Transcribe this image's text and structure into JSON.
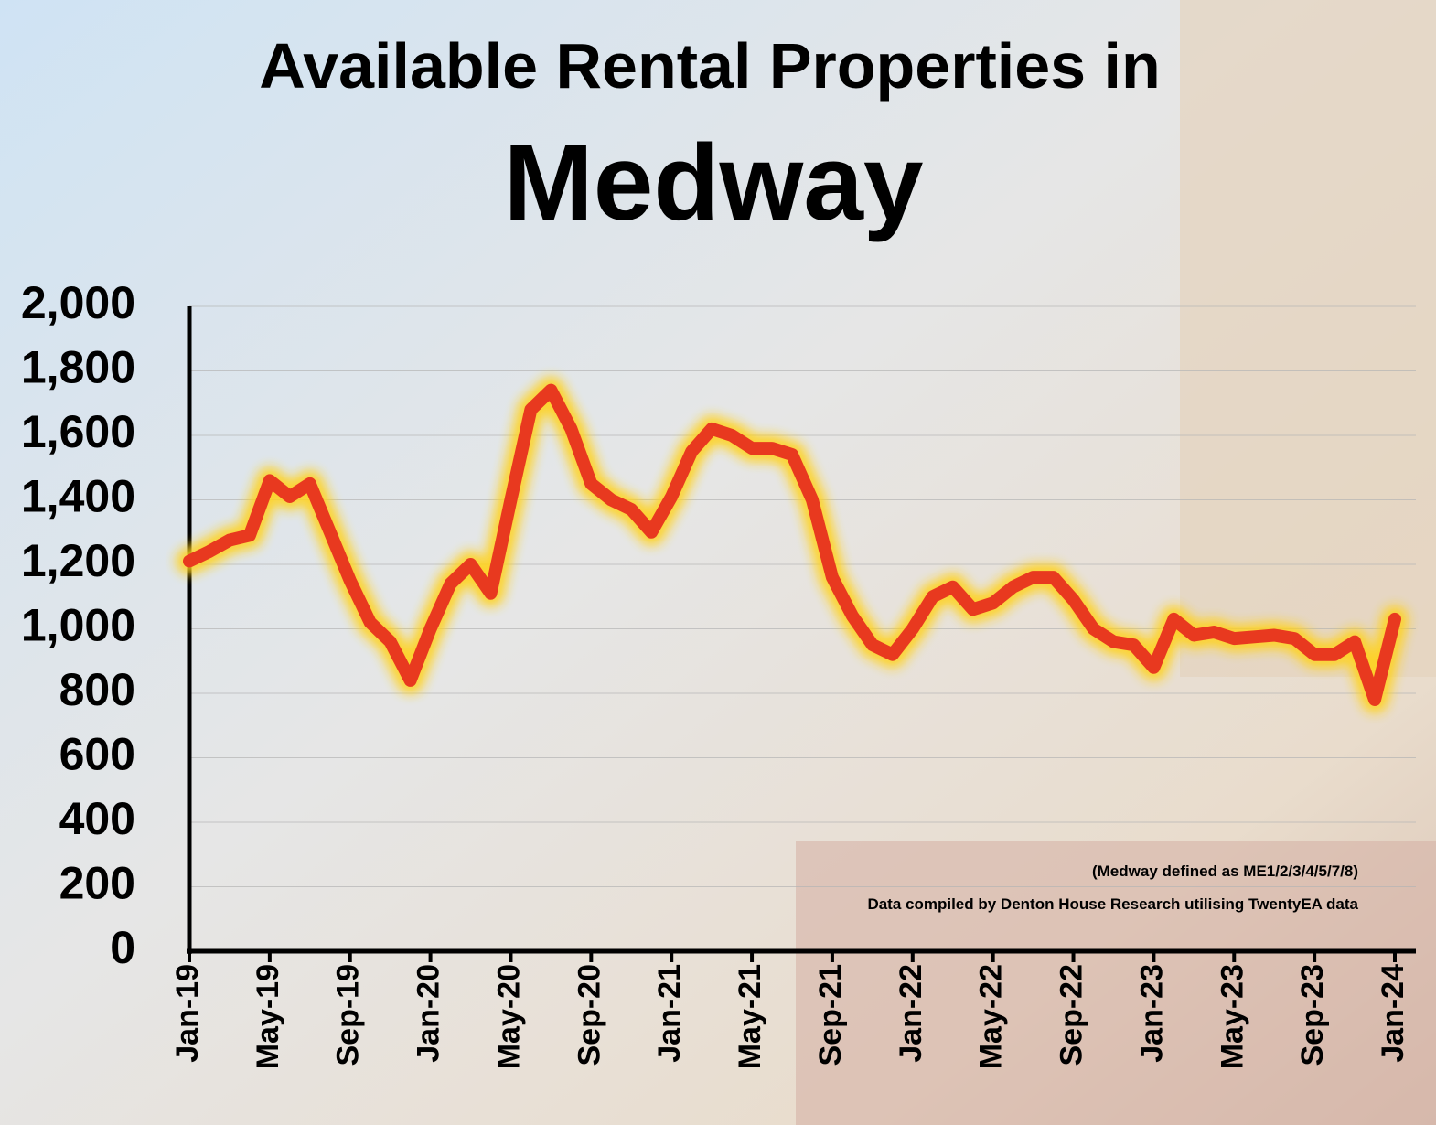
{
  "chart_data": {
    "type": "line",
    "title": "Available Rental Properties in",
    "subtitle": "Medway",
    "annotations": [
      "(Medway defined as ME1/2/3/4/5/7/8)",
      "Data compiled by Denton House Research utilising TwentyEA data"
    ],
    "categories": [
      "Jan-19",
      null,
      null,
      null,
      "May-19",
      null,
      null,
      null,
      "Sep-19",
      null,
      null,
      null,
      "Jan-20",
      null,
      null,
      null,
      "May-20",
      null,
      null,
      null,
      "Sep-20",
      null,
      null,
      null,
      "Jan-21",
      null,
      null,
      null,
      "May-21",
      null,
      null,
      null,
      "Sep-21",
      null,
      null,
      null,
      "Jan-22",
      null,
      null,
      null,
      "May-22",
      null,
      null,
      null,
      "Sep-22",
      null,
      null,
      null,
      "Jan-23",
      null,
      null,
      null,
      "May-23",
      null,
      null,
      null,
      "Sep-23",
      null,
      null,
      null,
      "Jan-24"
    ],
    "series": [
      {
        "name": "Medway",
        "color": "#e8391f",
        "values": [
          1210,
          1240,
          1275,
          1290,
          1460,
          1410,
          1450,
          1300,
          1150,
          1020,
          960,
          840,
          1000,
          1140,
          1200,
          1110,
          1400,
          1680,
          1740,
          1620,
          1450,
          1400,
          1370,
          1300,
          1410,
          1550,
          1620,
          1600,
          1560,
          1560,
          1540,
          1400,
          1160,
          1040,
          950,
          920,
          1000,
          1100,
          1130,
          1060,
          1080,
          1130,
          1160,
          1160,
          1090,
          1000,
          960,
          950,
          880,
          1030,
          980,
          990,
          970,
          975,
          980,
          970,
          920,
          920,
          960,
          780,
          1030
        ]
      }
    ],
    "ylim": [
      0,
      2000
    ],
    "yticks": [
      0,
      200,
      400,
      600,
      800,
      {
        "value": 1000,
        "label": "1,000"
      },
      {
        "value": 1200,
        "label": "1,200"
      },
      {
        "value": 1400,
        "label": "1,400"
      },
      {
        "value": 1600,
        "label": "1,600"
      },
      {
        "value": 1800,
        "label": "1,800"
      },
      {
        "value": 2000,
        "label": "2,000"
      }
    ],
    "grid": true
  }
}
